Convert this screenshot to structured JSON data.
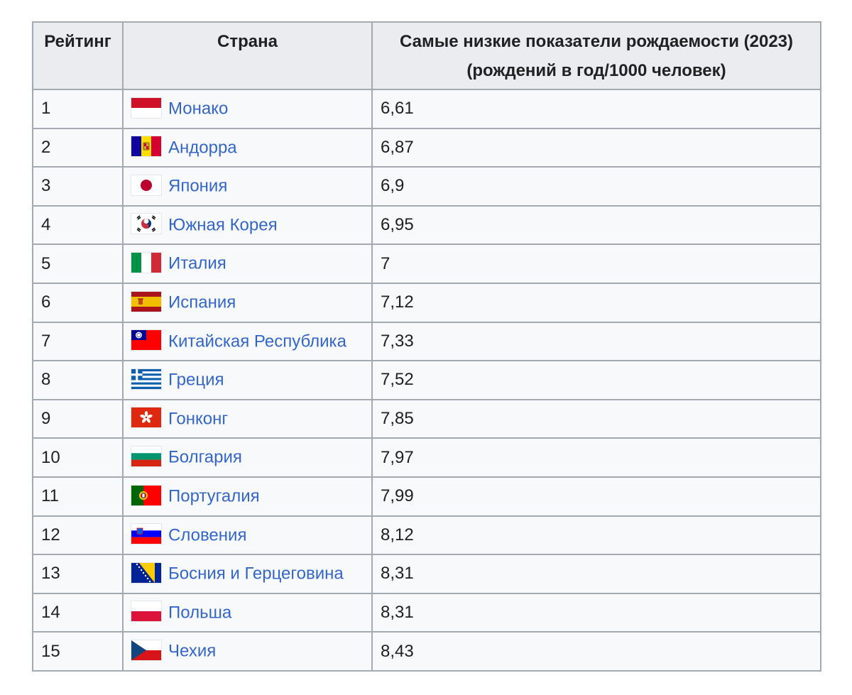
{
  "table": {
    "headers": {
      "rank": "Рейтинг",
      "country": "Страна",
      "rate_line1": "Самые низкие показатели рождаемости (2023)",
      "rate_line2": "(рождений в год/1000 человек)"
    },
    "rows": [
      {
        "rank": "1",
        "country": "Монако",
        "rate": "6,61",
        "flag": "monaco-flag"
      },
      {
        "rank": "2",
        "country": "Андорра",
        "rate": "6,87",
        "flag": "andorra-flag"
      },
      {
        "rank": "3",
        "country": "Япония",
        "rate": "6,9",
        "flag": "japan-flag"
      },
      {
        "rank": "4",
        "country": "Южная Корея",
        "rate": "6,95",
        "flag": "south-korea-flag"
      },
      {
        "rank": "5",
        "country": "Италия",
        "rate": "7",
        "flag": "italy-flag"
      },
      {
        "rank": "6",
        "country": "Испания",
        "rate": "7,12",
        "flag": "spain-flag"
      },
      {
        "rank": "7",
        "country": "Китайская Республика",
        "rate": "7,33",
        "flag": "taiwan-flag"
      },
      {
        "rank": "8",
        "country": "Греция",
        "rate": "7,52",
        "flag": "greece-flag"
      },
      {
        "rank": "9",
        "country": "Гонконг",
        "rate": "7,85",
        "flag": "hong-kong-flag"
      },
      {
        "rank": "10",
        "country": "Болгария",
        "rate": "7,97",
        "flag": "bulgaria-flag"
      },
      {
        "rank": "11",
        "country": "Португалия",
        "rate": "7,99",
        "flag": "portugal-flag"
      },
      {
        "rank": "12",
        "country": "Словения",
        "rate": "8,12",
        "flag": "slovenia-flag"
      },
      {
        "rank": "13",
        "country": "Босния и Герцеговина",
        "rate": "8,31",
        "flag": "bosnia-herzegovina-flag"
      },
      {
        "rank": "14",
        "country": "Польша",
        "rate": "8,31",
        "flag": "poland-flag"
      },
      {
        "rank": "15",
        "country": "Чехия",
        "rate": "8,43",
        "flag": "czechia-flag"
      }
    ]
  },
  "colors": {
    "link": "#3366cc",
    "border": "#a2a9b1",
    "header_bg": "#eaecf0",
    "cell_bg": "#f8f9fa",
    "text": "#202122"
  }
}
